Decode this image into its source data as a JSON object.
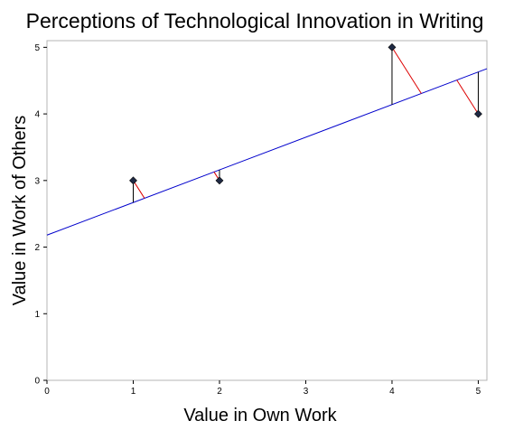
{
  "chart_data": {
    "type": "scatter",
    "title": "Perceptions of Technological Innovation in Writing",
    "xlabel": "Value in Own Work",
    "ylabel": "Value in Work of Others",
    "xlim": [
      0,
      5.1
    ],
    "ylim": [
      0,
      5.1
    ],
    "xticks": [
      "0",
      "1",
      "2",
      "3",
      "4",
      "5"
    ],
    "yticks": [
      "0",
      "1",
      "2",
      "3",
      "4",
      "5"
    ],
    "grid": false,
    "points": {
      "x": [
        1,
        2,
        4,
        5
      ],
      "y": [
        3,
        3,
        5,
        4
      ],
      "marker": "diamond",
      "color": "#1f2a44"
    },
    "regression_line": {
      "intercept": 2.18,
      "slope": 0.49,
      "color": "#0000cc"
    },
    "vertical_residual_color": "#000000",
    "perpendicular_residual_color": "#dd0000"
  }
}
